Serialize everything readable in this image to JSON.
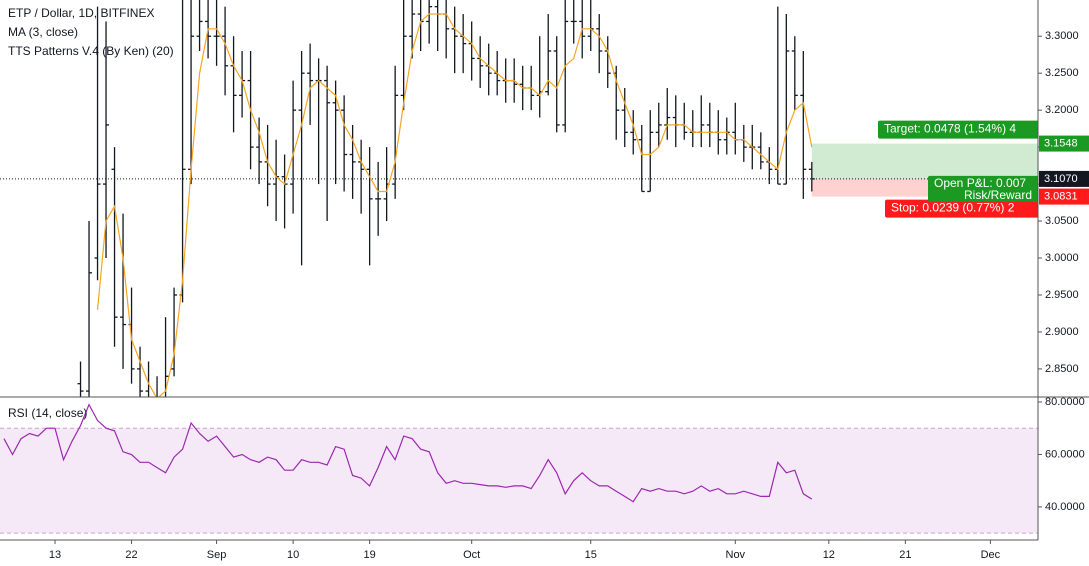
{
  "chart_data": [
    {
      "type": "ohlc",
      "title": "ETP / Dollar, 1D, BITFINEX",
      "annotations": [
        "TTS Patterns V.4 (By Ken) (20)"
      ],
      "x": [
        -6,
        -5,
        -4,
        -3,
        -2,
        -1,
        0,
        1,
        2,
        3,
        4,
        5,
        6,
        7,
        8,
        9,
        10,
        11,
        12,
        13,
        14,
        15,
        16,
        17,
        18,
        19,
        20,
        21,
        22,
        23,
        24,
        25,
        26,
        27,
        28,
        29,
        30,
        31,
        32,
        33,
        34,
        35,
        36,
        37,
        38,
        39,
        40,
        41,
        42,
        43,
        44,
        45,
        46,
        47,
        48,
        49,
        50,
        51,
        52,
        53,
        54,
        55,
        56,
        57,
        58,
        59,
        60,
        61,
        62,
        63,
        64,
        65,
        66,
        67,
        68,
        69,
        70,
        71,
        72,
        73,
        74,
        75,
        76,
        77,
        78,
        79,
        80,
        81,
        82,
        83,
        84,
        85,
        86,
        87,
        88,
        89
      ],
      "ohlc": [
        null,
        null,
        null,
        null,
        null,
        null,
        null,
        null,
        null,
        [
          2.83,
          2.86,
          2.8,
          2.82
        ],
        [
          2.82,
          3.05,
          2.81,
          2.98
        ],
        [
          3.0,
          3.34,
          2.97,
          3.1
        ],
        [
          3.1,
          3.32,
          3.0,
          3.18
        ],
        [
          3.12,
          3.15,
          2.88,
          2.92
        ],
        [
          2.92,
          3.06,
          2.85,
          2.91
        ],
        [
          2.91,
          2.96,
          2.83,
          2.85
        ],
        [
          2.85,
          2.88,
          2.8,
          2.82
        ],
        [
          2.82,
          2.86,
          2.8,
          2.81
        ],
        [
          2.81,
          2.84,
          2.8,
          2.81
        ],
        [
          2.81,
          2.92,
          2.8,
          2.84
        ],
        [
          2.85,
          2.96,
          2.84,
          2.95
        ],
        [
          2.95,
          3.35,
          2.94,
          3.12
        ],
        [
          3.12,
          3.35,
          3.1,
          3.3
        ],
        [
          3.3,
          3.35,
          3.28,
          3.32
        ],
        [
          3.32,
          3.35,
          3.27,
          3.3
        ],
        [
          3.3,
          3.35,
          3.26,
          3.3
        ],
        [
          3.3,
          3.34,
          3.22,
          3.26
        ],
        [
          3.26,
          3.3,
          3.17,
          3.22
        ],
        [
          3.22,
          3.28,
          3.19,
          3.24
        ],
        [
          3.24,
          3.28,
          3.12,
          3.15
        ],
        [
          3.15,
          3.19,
          3.1,
          3.13
        ],
        [
          3.13,
          3.18,
          3.07,
          3.1
        ],
        [
          3.1,
          3.16,
          3.05,
          3.11
        ],
        [
          3.11,
          3.14,
          3.04,
          3.1
        ],
        [
          3.1,
          3.24,
          3.06,
          3.2
        ],
        [
          3.2,
          3.28,
          2.99,
          3.25
        ],
        [
          3.25,
          3.29,
          3.18,
          3.24
        ],
        [
          3.24,
          3.27,
          3.1,
          3.24
        ],
        [
          3.24,
          3.26,
          3.05,
          3.21
        ],
        [
          3.21,
          3.24,
          3.1,
          3.2
        ],
        [
          3.2,
          3.22,
          3.09,
          3.14
        ],
        [
          3.14,
          3.18,
          3.08,
          3.13
        ],
        [
          3.13,
          3.16,
          3.06,
          3.12
        ],
        [
          3.12,
          3.15,
          2.99,
          3.08
        ],
        [
          3.08,
          3.13,
          3.03,
          3.08
        ],
        [
          3.08,
          3.15,
          3.05,
          3.1
        ],
        [
          3.1,
          3.26,
          3.08,
          3.22
        ],
        [
          3.22,
          3.36,
          3.2,
          3.3
        ],
        [
          3.3,
          3.37,
          3.27,
          3.33
        ],
        [
          3.33,
          3.36,
          3.28,
          3.32
        ],
        [
          3.32,
          3.37,
          3.29,
          3.34
        ],
        [
          3.34,
          3.36,
          3.28,
          3.33
        ],
        [
          3.33,
          3.35,
          3.27,
          3.31
        ],
        [
          3.31,
          3.34,
          3.25,
          3.3
        ],
        [
          3.3,
          3.33,
          3.25,
          3.29
        ],
        [
          3.29,
          3.32,
          3.24,
          3.27
        ],
        [
          3.27,
          3.3,
          3.23,
          3.26
        ],
        [
          3.26,
          3.29,
          3.22,
          3.25
        ],
        [
          3.25,
          3.28,
          3.22,
          3.24
        ],
        [
          3.24,
          3.27,
          3.21,
          3.24
        ],
        [
          3.24,
          3.27,
          3.21,
          3.235
        ],
        [
          3.235,
          3.26,
          3.2,
          3.23
        ],
        [
          3.23,
          3.26,
          3.2,
          3.22
        ],
        [
          3.22,
          3.3,
          3.19,
          3.225
        ],
        [
          3.225,
          3.33,
          3.22,
          3.28
        ],
        [
          3.28,
          3.3,
          3.17,
          3.18
        ],
        [
          3.18,
          3.36,
          3.17,
          3.32
        ],
        [
          3.32,
          3.36,
          3.29,
          3.32
        ],
        [
          3.32,
          3.35,
          3.27,
          3.3
        ],
        [
          3.3,
          3.36,
          3.28,
          3.31
        ],
        [
          3.31,
          3.33,
          3.25,
          3.28
        ],
        [
          3.28,
          3.3,
          3.23,
          3.25
        ],
        [
          3.25,
          3.26,
          3.16,
          3.2
        ],
        [
          3.2,
          3.23,
          3.15,
          3.17
        ],
        [
          3.17,
          3.2,
          3.14,
          3.16
        ],
        [
          3.16,
          3.18,
          3.09,
          3.09
        ],
        [
          3.09,
          3.2,
          3.09,
          3.17
        ],
        [
          3.17,
          3.21,
          3.15,
          3.18
        ],
        [
          3.18,
          3.23,
          3.16,
          3.19
        ],
        [
          3.19,
          3.22,
          3.15,
          3.18
        ],
        [
          3.18,
          3.21,
          3.16,
          3.17
        ],
        [
          3.17,
          3.2,
          3.15,
          3.17
        ],
        [
          3.17,
          3.22,
          3.15,
          3.18
        ],
        [
          3.18,
          3.21,
          3.15,
          3.17
        ],
        [
          3.17,
          3.2,
          3.14,
          3.16
        ],
        [
          3.16,
          3.19,
          3.14,
          3.17
        ],
        [
          3.17,
          3.21,
          3.14,
          3.16
        ],
        [
          3.16,
          3.18,
          3.13,
          3.15
        ],
        [
          3.15,
          3.18,
          3.12,
          3.15
        ],
        [
          3.15,
          3.17,
          3.12,
          3.13
        ],
        [
          3.13,
          3.15,
          3.1,
          3.12
        ],
        [
          3.12,
          3.34,
          3.1,
          3.1
        ],
        [
          3.1,
          3.33,
          3.1,
          3.28
        ],
        [
          3.28,
          3.3,
          3.2,
          3.22
        ],
        [
          3.22,
          3.28,
          3.08,
          3.12
        ],
        [
          3.12,
          3.13,
          3.09,
          3.107
        ]
      ],
      "color": "#131722",
      "series": [
        {
          "name": "MA (3, close)",
          "color": "#f5a623",
          "values": [
            null,
            null,
            null,
            null,
            null,
            null,
            null,
            null,
            null,
            null,
            null,
            2.93,
            3.05,
            3.07,
            3.0,
            2.89,
            2.86,
            2.83,
            2.81,
            2.82,
            2.87,
            2.97,
            3.12,
            3.25,
            3.31,
            3.31,
            3.29,
            3.26,
            3.24,
            3.2,
            3.17,
            3.13,
            3.11,
            3.1,
            3.14,
            3.18,
            3.23,
            3.24,
            3.23,
            3.22,
            3.18,
            3.16,
            3.13,
            3.11,
            3.09,
            3.09,
            3.13,
            3.21,
            3.28,
            3.32,
            3.33,
            3.33,
            3.33,
            3.31,
            3.3,
            3.29,
            3.27,
            3.26,
            3.25,
            3.24,
            3.24,
            3.23,
            3.23,
            3.22,
            3.24,
            3.23,
            3.26,
            3.27,
            3.31,
            3.31,
            3.3,
            3.28,
            3.24,
            3.21,
            3.18,
            3.14,
            3.14,
            3.15,
            3.18,
            3.18,
            3.18,
            3.17,
            3.17,
            3.17,
            3.17,
            3.17,
            3.16,
            3.16,
            3.15,
            3.14,
            3.13,
            3.12,
            3.17,
            3.2,
            3.21,
            3.15
          ]
        }
      ],
      "xlim": [
        -6.47,
        115.6
      ],
      "ylim": [
        2.812,
        3.349
      ],
      "yticks": [
        {
          "value": 2.85,
          "label": "2.8500"
        },
        {
          "value": 2.9,
          "label": "2.9000"
        },
        {
          "value": 2.95,
          "label": "2.9500"
        },
        {
          "value": 3.0,
          "label": "3.0000"
        },
        {
          "value": 3.05,
          "label": "3.0500"
        },
        {
          "value": 3.1,
          "label": "3.1000"
        },
        {
          "value": 3.15,
          "label": "3.1500"
        },
        {
          "value": 3.2,
          "label": "3.2000"
        },
        {
          "value": 3.25,
          "label": "3.2500"
        },
        {
          "value": 3.3,
          "label": "3.3000"
        }
      ],
      "price_tags": [
        {
          "value": 3.1548,
          "label": "3.1548",
          "color": "#1a9a23"
        },
        {
          "value": 3.107,
          "label": "3.1070",
          "color": "#131722"
        },
        {
          "value": 3.0831,
          "label": "3.0831",
          "color": "#ff1b1b"
        }
      ],
      "position": {
        "start_x": 89,
        "entry": 3.107,
        "target": 3.1548,
        "stop": 3.0831,
        "target_color": "#1a9a23",
        "stop_color": "#ff1b1b",
        "target_label": "Target: 0.0478 (1.54%) 4",
        "pnl_label": "Open P&L: 0.007",
        "rr_label": "Risk/Reward",
        "stop_label": "Stop: 0.0239 (0.77%) 2"
      }
    },
    {
      "type": "line",
      "x": [
        -6,
        -5,
        -4,
        -3,
        -2,
        -1,
        0,
        1,
        2,
        3,
        4,
        5,
        6,
        7,
        8,
        9,
        10,
        11,
        12,
        13,
        14,
        15,
        16,
        17,
        18,
        19,
        20,
        21,
        22,
        23,
        24,
        25,
        26,
        27,
        28,
        29,
        30,
        31,
        32,
        33,
        34,
        35,
        36,
        37,
        38,
        39,
        40,
        41,
        42,
        43,
        44,
        45,
        46,
        47,
        48,
        49,
        50,
        51,
        52,
        53,
        54,
        55,
        56,
        57,
        58,
        59,
        60,
        61,
        62,
        63,
        64,
        65,
        66,
        67,
        68,
        69,
        70,
        71,
        72,
        73,
        74,
        75,
        76,
        77,
        78,
        79,
        80,
        81,
        82,
        83,
        84,
        85,
        86,
        87,
        88,
        89
      ],
      "series": [
        {
          "name": "RSI (14, close)",
          "color": "#9c27b0",
          "values": [
            66,
            60,
            66,
            68,
            67,
            70,
            70,
            58,
            65,
            71,
            79,
            73,
            70,
            69,
            61,
            60,
            57,
            57,
            55,
            53,
            59,
            62,
            72,
            68,
            65,
            67,
            63,
            59,
            60,
            58,
            57,
            59,
            58,
            54,
            54,
            58,
            57,
            57,
            56,
            63,
            62,
            52,
            51,
            48,
            55,
            63,
            58,
            67,
            66,
            62,
            61,
            53,
            49,
            50,
            49,
            49,
            48.5,
            48,
            48,
            47.5,
            48,
            48,
            47,
            52,
            58,
            53,
            45,
            50,
            53,
            50,
            48,
            48,
            46,
            44,
            42,
            47,
            46,
            47,
            46,
            46,
            45,
            46,
            48,
            46,
            47,
            45,
            45,
            46,
            45,
            44,
            44,
            57,
            53,
            54,
            45,
            43
          ]
        }
      ],
      "bands": [
        30,
        70
      ],
      "xlim": [
        -6.47,
        115.6
      ],
      "xticks": [
        {
          "value": 0,
          "label": "13"
        },
        {
          "value": 9,
          "label": "22"
        },
        {
          "value": 19,
          "label": "Sep"
        },
        {
          "value": 28,
          "label": "10"
        },
        {
          "value": 37,
          "label": "19"
        },
        {
          "value": 49,
          "label": "Oct"
        },
        {
          "value": 63,
          "label": "15"
        },
        {
          "value": 80,
          "label": "Nov"
        },
        {
          "value": 91,
          "label": "12"
        },
        {
          "value": 100,
          "label": "21"
        },
        {
          "value": 110,
          "label": "Dec"
        }
      ],
      "ylim": [
        27.4,
        81.9
      ],
      "yticks": [
        {
          "value": 40,
          "label": "40.0000"
        },
        {
          "value": 60,
          "label": "60.0000"
        },
        {
          "value": 80,
          "label": "80.0000"
        }
      ]
    }
  ]
}
